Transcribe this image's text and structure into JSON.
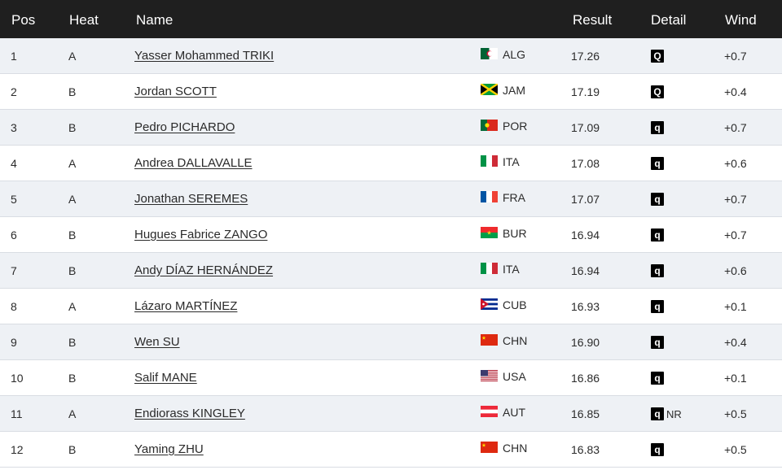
{
  "header": {
    "pos": "Pos",
    "heat": "Heat",
    "name": "Name",
    "result": "Result",
    "detail": "Detail",
    "wind": "Wind"
  },
  "rows": [
    {
      "pos": "1",
      "heat": "A",
      "name": "Yasser Mohammed TRIKI",
      "flag": "alg-flag-icon",
      "nat": "ALG",
      "result": "17.26",
      "q": "Q",
      "record": "",
      "wind": "+0.7"
    },
    {
      "pos": "2",
      "heat": "B",
      "name": "Jordan SCOTT",
      "flag": "jam-flag-icon",
      "nat": "JAM",
      "result": "17.19",
      "q": "Q",
      "record": "",
      "wind": "+0.4"
    },
    {
      "pos": "3",
      "heat": "B",
      "name": "Pedro PICHARDO",
      "flag": "por-flag-icon",
      "nat": "POR",
      "result": "17.09",
      "q": "q",
      "record": "",
      "wind": "+0.7"
    },
    {
      "pos": "4",
      "heat": "A",
      "name": "Andrea DALLAVALLE",
      "flag": "ita-flag-icon",
      "nat": "ITA",
      "result": "17.08",
      "q": "q",
      "record": "",
      "wind": "+0.6"
    },
    {
      "pos": "5",
      "heat": "A",
      "name": "Jonathan SEREMES",
      "flag": "fra-flag-icon",
      "nat": "FRA",
      "result": "17.07",
      "q": "q",
      "record": "",
      "wind": "+0.7"
    },
    {
      "pos": "6",
      "heat": "B",
      "name": "Hugues Fabrice ZANGO",
      "flag": "bur-flag-icon",
      "nat": "BUR",
      "result": "16.94",
      "q": "q",
      "record": "",
      "wind": "+0.7"
    },
    {
      "pos": "7",
      "heat": "B",
      "name": "Andy DÍAZ HERNÁNDEZ",
      "flag": "ita-flag-icon",
      "nat": "ITA",
      "result": "16.94",
      "q": "q",
      "record": "",
      "wind": "+0.6"
    },
    {
      "pos": "8",
      "heat": "A",
      "name": "Lázaro MARTÍNEZ",
      "flag": "cub-flag-icon",
      "nat": "CUB",
      "result": "16.93",
      "q": "q",
      "record": "",
      "wind": "+0.1"
    },
    {
      "pos": "9",
      "heat": "B",
      "name": "Wen SU",
      "flag": "chn-flag-icon",
      "nat": "CHN",
      "result": "16.90",
      "q": "q",
      "record": "",
      "wind": "+0.4"
    },
    {
      "pos": "10",
      "heat": "B",
      "name": "Salif MANE",
      "flag": "usa-flag-icon",
      "nat": "USA",
      "result": "16.86",
      "q": "q",
      "record": "",
      "wind": "+0.1"
    },
    {
      "pos": "11",
      "heat": "A",
      "name": "Endiorass KINGLEY",
      "flag": "aut-flag-icon",
      "nat": "AUT",
      "result": "16.85",
      "q": "q",
      "record": "NR",
      "wind": "+0.5"
    },
    {
      "pos": "12",
      "heat": "B",
      "name": "Yaming ZHU",
      "flag": "chn-flag-icon",
      "nat": "CHN",
      "result": "16.83",
      "q": "q",
      "record": "",
      "wind": "+0.5"
    }
  ]
}
